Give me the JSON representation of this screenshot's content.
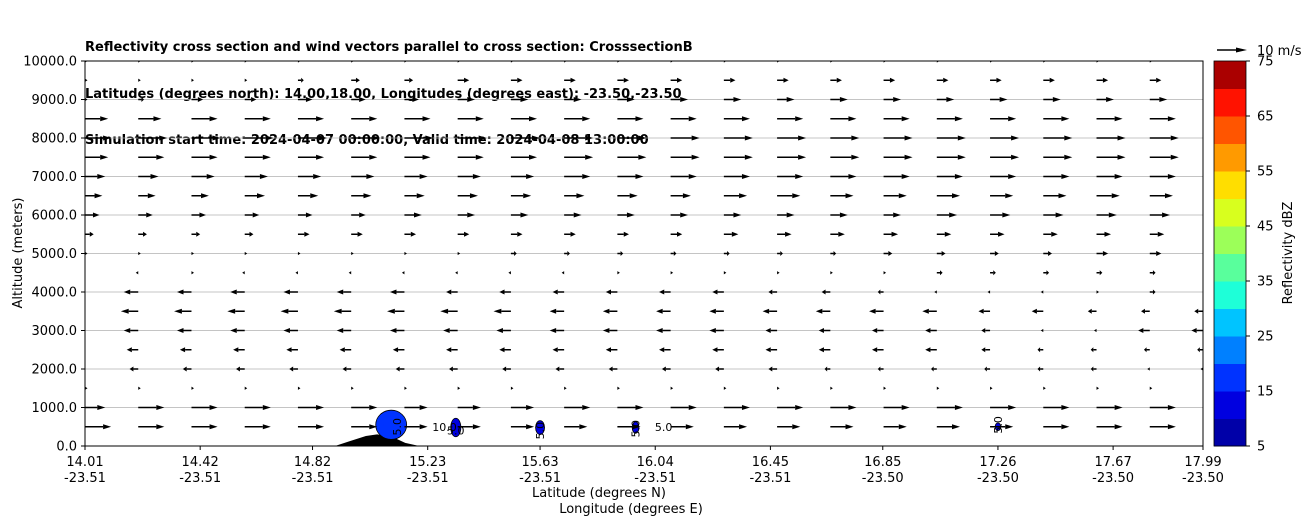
{
  "title_lines": [
    "Reflectivity cross section and wind vectors parallel to cross section: CrosssectionB",
    "Latitudes (degrees north): 14.00,18.00, Longitudes (degrees east): -23.50,-23.50",
    "Simulation start time: 2024-04-07 00:00:00, Valid time: 2024-04-08 13:00:00"
  ],
  "chart_data": {
    "type": "cross-section (reflectivity contour + wind vectors)",
    "ylabel": "Altitude (meters)",
    "xlabel_lat": "Latitude (degrees N)",
    "xlabel_lon": "Longitude (degrees E)",
    "ylim": [
      0,
      10000
    ],
    "y_ticks": [
      "0.0",
      "1000.0",
      "2000.0",
      "3000.0",
      "4000.0",
      "5000.0",
      "6000.0",
      "7000.0",
      "8000.0",
      "9000.0",
      "10000.0"
    ],
    "x_tick_lat": [
      "14.01",
      "14.42",
      "14.82",
      "15.23",
      "15.63",
      "16.04",
      "16.45",
      "16.85",
      "17.26",
      "17.67",
      "17.99"
    ],
    "x_tick_lon": [
      "-23.51",
      "-23.51",
      "-23.51",
      "-23.51",
      "-23.51",
      "-23.51",
      "-23.51",
      "-23.50",
      "-23.50",
      "-23.50",
      "-23.50"
    ],
    "grid": "horizontal",
    "quiver_key": "10 m/s",
    "colorbar": {
      "label": "Reflectivity dBZ",
      "tick_labels": [
        "5",
        "15",
        "25",
        "35",
        "45",
        "55",
        "65",
        "75"
      ],
      "range": [
        5,
        75
      ],
      "step": 5,
      "colors": [
        "#0000a8",
        "#0000e0",
        "#0033ff",
        "#0080ff",
        "#00c4ff",
        "#1effd8",
        "#59ff9c",
        "#9cff59",
        "#d8ff1e",
        "#ffde00",
        "#ff9a00",
        "#ff5500",
        "#ff1200",
        "#aa0000"
      ]
    },
    "contour_labels": [
      {
        "text": "5.0",
        "lat": 15.12,
        "alt": 500
      },
      {
        "text": "10.0",
        "lat": 15.29,
        "alt": 500
      },
      {
        "text": "5.0",
        "lat": 15.33,
        "alt": 400
      },
      {
        "text": "5.0",
        "lat": 15.63,
        "alt": 400
      },
      {
        "text": "5.0",
        "lat": 15.97,
        "alt": 450
      },
      {
        "text": "5.0",
        "lat": 16.07,
        "alt": 500
      },
      {
        "text": "5.0",
        "lat": 17.26,
        "alt": 550
      }
    ],
    "wind_rows": [
      {
        "alt": 500,
        "u": [
          9,
          9,
          9,
          9,
          9,
          9,
          8,
          8,
          8,
          8,
          8,
          8,
          8,
          8,
          8,
          8,
          8,
          8,
          9,
          9,
          9,
          9
        ]
      },
      {
        "alt": 1000,
        "u": [
          7,
          9,
          9,
          9,
          9,
          9,
          8,
          8,
          8,
          9,
          9,
          9,
          9,
          9,
          9,
          9,
          9,
          9,
          9,
          9,
          9,
          9
        ]
      },
      {
        "alt": 1500,
        "u": [
          1,
          1,
          1,
          1,
          1,
          1,
          1,
          1,
          1,
          1,
          1,
          1,
          1,
          1,
          1,
          1,
          1,
          1,
          1,
          1,
          1,
          1
        ]
      },
      {
        "alt": 2000,
        "u": [
          -1,
          -3,
          -3,
          -3,
          -3,
          -3,
          -3,
          -3,
          -3,
          -3,
          -3,
          -3,
          -3,
          -3,
          -2,
          -2,
          -2,
          -2,
          -2,
          -2,
          -1,
          -1
        ]
      },
      {
        "alt": 2500,
        "u": [
          -2,
          -4,
          -4,
          -4,
          -4,
          -4,
          -4,
          -4,
          -4,
          -4,
          -4,
          -4,
          -4,
          -4,
          -4,
          -4,
          -4,
          -3,
          -2,
          -2,
          -2,
          -2
        ]
      },
      {
        "alt": 3000,
        "u": [
          -3,
          -5,
          -5,
          -5,
          -5,
          -5,
          -5,
          -5,
          -5,
          -5,
          -5,
          -5,
          -5,
          -4,
          -4,
          -4,
          -4,
          -3,
          -1,
          -1,
          -4,
          -4
        ]
      },
      {
        "alt": 3500,
        "u": [
          -4,
          -6,
          -6,
          -6,
          -6,
          -6,
          -6,
          -6,
          -6,
          -5,
          -5,
          -5,
          -5,
          -5,
          -5,
          -5,
          -5,
          -4,
          -4,
          -3,
          -3,
          -3
        ]
      },
      {
        "alt": 4000,
        "u": [
          -2,
          -5,
          -5,
          -5,
          -5,
          -5,
          -5,
          -4,
          -4,
          -4,
          -4,
          -4,
          -4,
          -3,
          -3,
          -2,
          -1,
          -1,
          -1,
          1,
          2,
          4
        ]
      },
      {
        "alt": 4500,
        "u": [
          -1,
          -1,
          1,
          -1,
          -1,
          -1,
          -1,
          -1,
          -1,
          -1,
          1,
          1,
          1,
          1,
          1,
          1,
          2,
          2,
          2,
          2,
          2,
          3
        ]
      },
      {
        "alt": 5000,
        "u": [
          1,
          1,
          1,
          1,
          1,
          1,
          1,
          1,
          2,
          2,
          2,
          2,
          2,
          2,
          2,
          3,
          3,
          3,
          3,
          4,
          4,
          4
        ]
      },
      {
        "alt": 5500,
        "u": [
          3,
          3,
          3,
          3,
          4,
          4,
          4,
          4,
          4,
          4,
          4,
          4,
          5,
          5,
          5,
          5,
          5,
          5,
          5,
          5,
          5,
          6
        ]
      },
      {
        "alt": 6000,
        "u": [
          5,
          5,
          5,
          5,
          5,
          5,
          6,
          6,
          6,
          6,
          6,
          6,
          6,
          6,
          6,
          6,
          7,
          7,
          7,
          7,
          7,
          7
        ]
      },
      {
        "alt": 6500,
        "u": [
          6,
          6,
          6,
          7,
          7,
          7,
          7,
          7,
          7,
          7,
          7,
          7,
          8,
          8,
          8,
          8,
          8,
          8,
          8,
          8,
          8,
          8
        ]
      },
      {
        "alt": 7000,
        "u": [
          7,
          7,
          8,
          8,
          8,
          8,
          8,
          8,
          8,
          9,
          9,
          9,
          9,
          9,
          9,
          9,
          9,
          9,
          9,
          9,
          9,
          9
        ]
      },
      {
        "alt": 7500,
        "u": [
          8,
          9,
          9,
          9,
          9,
          9,
          9,
          9,
          9,
          10,
          10,
          10,
          10,
          10,
          10,
          10,
          10,
          10,
          10,
          10,
          10,
          10
        ]
      },
      {
        "alt": 8000,
        "u": [
          9,
          10,
          10,
          10,
          10,
          10,
          10,
          10,
          10,
          10,
          10,
          10,
          10,
          10,
          10,
          10,
          10,
          10,
          10,
          10,
          10,
          10
        ]
      },
      {
        "alt": 8500,
        "u": [
          8,
          8,
          9,
          9,
          9,
          9,
          9,
          9,
          9,
          9,
          9,
          9,
          9,
          9,
          9,
          9,
          9,
          9,
          9,
          9,
          9,
          9
        ]
      },
      {
        "alt": 9000,
        "u": [
          1,
          2,
          4,
          4,
          5,
          5,
          5,
          6,
          6,
          6,
          6,
          6,
          6,
          6,
          6,
          6,
          6,
          6,
          6,
          6,
          6,
          6
        ]
      },
      {
        "alt": 9500,
        "u": [
          1,
          1,
          1,
          1,
          2,
          3,
          3,
          4,
          4,
          4,
          4,
          4,
          4,
          4,
          4,
          4,
          4,
          4,
          4,
          4,
          4,
          4
        ]
      },
      {
        "alt": 10000,
        "u": [
          0,
          0,
          0,
          0,
          0,
          0,
          1,
          1,
          1,
          1,
          1,
          1,
          1,
          1,
          1,
          1,
          1,
          1,
          1,
          1,
          1,
          1
        ]
      }
    ],
    "wind_lat_range": [
      14.01,
      17.99
    ],
    "terrain": [
      {
        "lat": 14.01,
        "alt": 0
      },
      {
        "lat": 14.9,
        "alt": 0
      },
      {
        "lat": 14.95,
        "alt": 120
      },
      {
        "lat": 15.01,
        "alt": 260
      },
      {
        "lat": 15.05,
        "alt": 300
      },
      {
        "lat": 15.1,
        "alt": 250
      },
      {
        "lat": 15.15,
        "alt": 80
      },
      {
        "lat": 15.2,
        "alt": 0
      },
      {
        "lat": 17.99,
        "alt": 0
      }
    ],
    "echoes": [
      {
        "lat": 15.1,
        "alt": 550,
        "r_lat": 0.055,
        "r_alt": 380,
        "dbz": 16
      },
      {
        "lat": 15.33,
        "alt": 480,
        "r_lat": 0.018,
        "r_alt": 240,
        "dbz": 12
      },
      {
        "lat": 15.63,
        "alt": 480,
        "r_lat": 0.016,
        "r_alt": 180,
        "dbz": 12
      },
      {
        "lat": 15.97,
        "alt": 480,
        "r_lat": 0.012,
        "r_alt": 150,
        "dbz": 10
      },
      {
        "lat": 17.26,
        "alt": 500,
        "r_lat": 0.01,
        "r_alt": 100,
        "dbz": 10
      }
    ]
  }
}
